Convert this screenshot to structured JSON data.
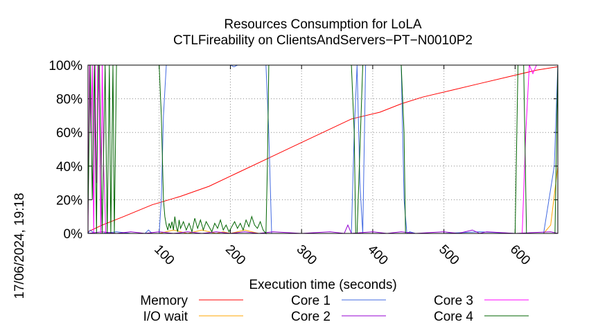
{
  "chart_data": {
    "type": "line",
    "title": "Resources Consumption for LoLA",
    "subtitle": "CTLFireability on ClientsAndServers−PT−N0010P2",
    "xlabel": "Execution time (seconds)",
    "ylabel": "",
    "side_label": "17/06/2024, 19:18",
    "xlim": [
      0,
      660
    ],
    "ylim": [
      0,
      100
    ],
    "xticks": [
      100,
      200,
      300,
      400,
      500,
      600
    ],
    "yticks": [
      0,
      20,
      40,
      60,
      80,
      100
    ],
    "ytick_labels": [
      "0%",
      "20%",
      "40%",
      "60%",
      "80%",
      "100%"
    ],
    "grid": true,
    "legend_position": "bottom",
    "series": [
      {
        "name": "Memory",
        "color": "#ff0000",
        "x": [
          0,
          20,
          50,
          90,
          130,
          170,
          210,
          250,
          290,
          330,
          370,
          380,
          410,
          440,
          470,
          510,
          550,
          590,
          630,
          660
        ],
        "y": [
          1,
          5,
          10,
          17,
          22,
          28,
          36,
          44,
          52,
          60,
          68,
          69,
          72,
          77,
          81,
          85,
          89,
          93,
          97,
          99
        ]
      },
      {
        "name": "I/O wait",
        "color": "#ffa500",
        "x": [
          0,
          100,
          110,
          120,
          130,
          140,
          150,
          160,
          170,
          180,
          190,
          200,
          210,
          220,
          230,
          240,
          260,
          640,
          650,
          660
        ],
        "y": [
          0,
          0,
          1,
          2,
          1,
          0,
          1,
          2,
          1,
          0,
          1,
          0,
          1,
          2,
          1,
          0,
          0,
          0,
          5,
          40
        ]
      },
      {
        "name": "Core 1",
        "color": "#4169e1",
        "x": [
          0,
          3,
          6,
          10,
          20,
          40,
          60,
          80,
          85,
          90,
          100,
          103,
          106,
          110,
          115,
          200,
          205,
          210,
          250,
          254,
          258,
          370,
          374,
          378,
          382,
          386,
          390,
          440,
          444,
          448,
          452,
          460,
          500,
          550,
          600,
          640,
          655,
          660
        ],
        "y": [
          0,
          2,
          1,
          0,
          0,
          1,
          0,
          0,
          2,
          0,
          0,
          20,
          70,
          100,
          100,
          100,
          99,
          100,
          100,
          60,
          0,
          0,
          60,
          100,
          30,
          0,
          100,
          100,
          20,
          0,
          1,
          0,
          0,
          1,
          0,
          0,
          40,
          100
        ]
      },
      {
        "name": "Core 2",
        "color": "#9400d3",
        "x": [
          0,
          20,
          40,
          60,
          80,
          100,
          120,
          140,
          160,
          180,
          200,
          220,
          240,
          260,
          300,
          340,
          360,
          365,
          370,
          400,
          420,
          440,
          460,
          500,
          520,
          540,
          550,
          560,
          600,
          650,
          660
        ],
        "y": [
          0,
          1,
          0,
          1,
          0,
          1,
          0,
          1,
          0,
          1,
          0,
          1,
          0,
          1,
          0,
          1,
          0,
          5,
          0,
          1,
          0,
          1,
          0,
          1,
          0,
          2,
          0,
          1,
          0,
          1,
          0
        ]
      },
      {
        "name": "Core 3",
        "color": "#ff00ff",
        "x": [
          0,
          2,
          4,
          6,
          8,
          10,
          12,
          15,
          18,
          20,
          22,
          25,
          100,
          610,
          615,
          620,
          625,
          630,
          640,
          660
        ],
        "y": [
          0,
          100,
          60,
          100,
          0,
          100,
          30,
          100,
          0,
          100,
          40,
          0,
          0,
          0,
          60,
          100,
          95,
          100,
          100,
          100
        ]
      },
      {
        "name": "Core 4",
        "color": "#006400",
        "x": [
          0,
          3,
          6,
          9,
          12,
          14,
          16,
          20,
          24,
          27,
          30,
          32,
          35,
          37,
          40,
          60,
          100,
          103,
          106,
          108,
          110,
          112,
          114,
          116,
          118,
          120,
          122,
          124,
          126,
          128,
          130,
          134,
          138,
          142,
          146,
          150,
          154,
          158,
          162,
          166,
          170,
          174,
          178,
          182,
          186,
          190,
          194,
          198,
          202,
          206,
          210,
          214,
          218,
          222,
          226,
          230,
          234,
          238,
          242,
          246,
          250,
          252,
          254,
          256,
          260,
          370,
          374,
          376,
          378,
          382,
          386,
          390,
          440,
          444,
          446,
          448,
          452,
          460,
          600,
          604,
          608,
          612,
          616,
          620,
          640,
          656,
          660
        ],
        "y": [
          10,
          100,
          20,
          100,
          0,
          100,
          100,
          0,
          100,
          0,
          100,
          0,
          100,
          0,
          100,
          100,
          100,
          70,
          20,
          10,
          5,
          2,
          6,
          3,
          7,
          2,
          10,
          4,
          1,
          8,
          3,
          7,
          2,
          6,
          1,
          9,
          3,
          8,
          2,
          7,
          4,
          1,
          6,
          3,
          8,
          2,
          5,
          1,
          4,
          7,
          3,
          6,
          2,
          8,
          4,
          10,
          5,
          3,
          7,
          2,
          0,
          40,
          100,
          100,
          100,
          100,
          60,
          0,
          0,
          50,
          100,
          100,
          100,
          60,
          0,
          0,
          0,
          0,
          0,
          100,
          100,
          100,
          0,
          0,
          0,
          0,
          100
        ]
      }
    ]
  }
}
